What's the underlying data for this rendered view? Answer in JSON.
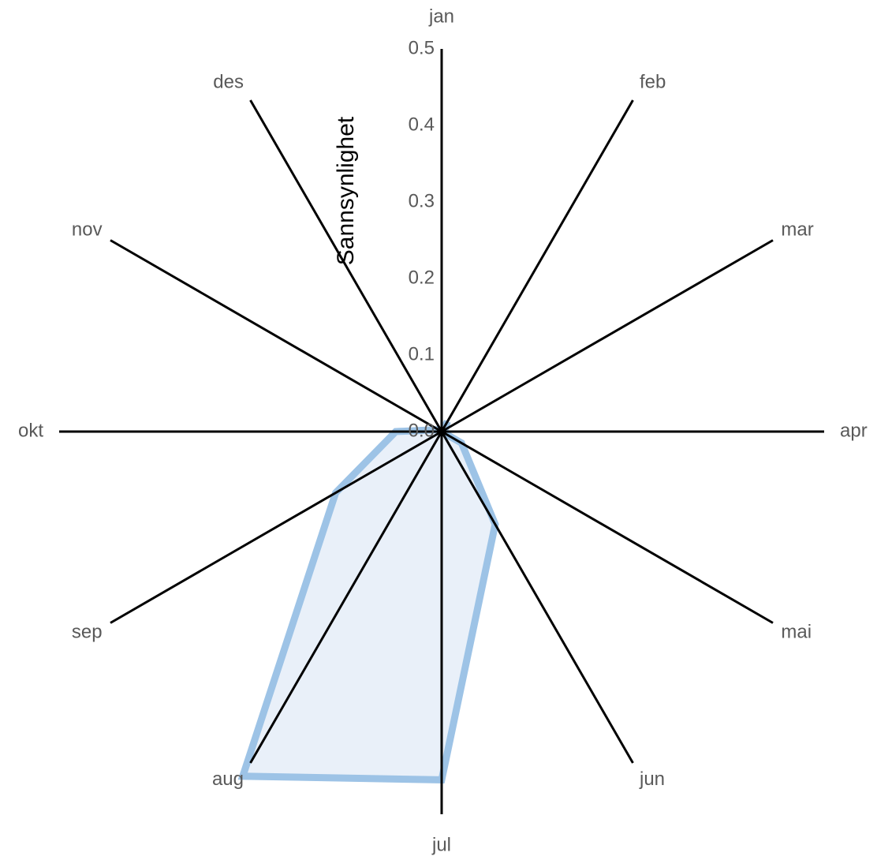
{
  "chart_data": {
    "type": "radar",
    "title": "",
    "ylabel": "Sannsynlighet",
    "categories": [
      "jan",
      "feb",
      "mar",
      "apr",
      "mai",
      "jun",
      "jul",
      "aug",
      "sep",
      "okt",
      "nov",
      "des"
    ],
    "rlim": [
      0,
      0.5
    ],
    "ticks": [
      "0.0",
      "0.1",
      "0.2",
      "0.3",
      "0.4",
      "0.5"
    ],
    "tick_values": [
      0,
      0.1,
      0.2,
      0.3,
      0.4,
      0.5
    ],
    "series": [
      {
        "values": [
          0.0,
          0.015,
          0.005,
          0.0,
          0.03,
          0.14,
          0.455,
          0.52,
          0.16,
          0.06,
          0.005,
          0.0
        ],
        "stroke_color": "#9dc3e6",
        "fill_color": "#e9f0f9"
      }
    ],
    "gridlines": false,
    "legend": "none"
  }
}
